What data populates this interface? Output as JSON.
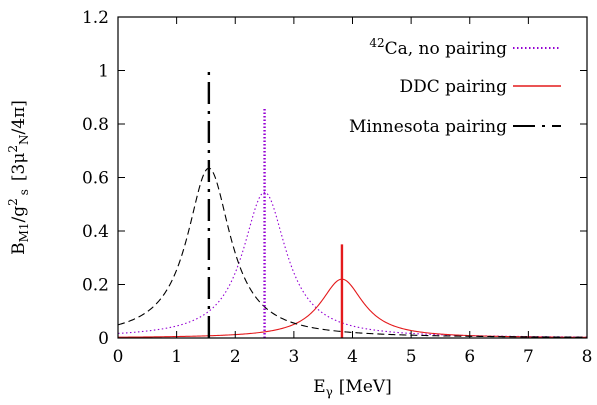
{
  "chart_data": {
    "type": "line",
    "xlabel": {
      "main": "E",
      "sub": "γ",
      "unit": "[MeV]"
    },
    "ylabel": {
      "b": "B",
      "b_sub": "M1",
      "mid": "/g",
      "g_sup": "2",
      "g_sub": "s",
      "unit_open": "[3μ",
      "unit_sup": "2",
      "unit_sub": "N",
      "unit_close": "/4π]"
    },
    "xlim": [
      0,
      8
    ],
    "ylim": [
      0,
      1.2
    ],
    "xticks": [
      0,
      1,
      2,
      3,
      4,
      5,
      6,
      7,
      8
    ],
    "yticks": [
      0,
      0.2,
      0.4,
      0.6,
      0.8,
      1,
      1.2
    ],
    "ytick_labels": [
      "0",
      "0.2",
      "0.4",
      "0.6",
      "0.8",
      "1",
      "1.2"
    ],
    "grid": false,
    "legend_position": "top-right",
    "legend": [
      {
        "sup": "42",
        "label": "Ca, no pairing",
        "color": "#9400d3",
        "style": "dotted"
      },
      {
        "sup": "",
        "label": "DDC pairing",
        "color": "#e41a1c",
        "style": "solid"
      },
      {
        "sup": "",
        "label": "Minnesota pairing",
        "color": "#000000",
        "style": "dashed"
      }
    ],
    "series": [
      {
        "color": "#9400d3",
        "style": "dotted",
        "peak_x": 2.5,
        "peak_y": 0.545,
        "width": 0.45,
        "stick_height": 0.86
      },
      {
        "color": "#e41a1c",
        "style": "solid",
        "peak_x": 3.82,
        "peak_y": 0.22,
        "width": 0.45,
        "stick_height": 0.35
      },
      {
        "color": "#000000",
        "style": "dashed",
        "peak_x": 1.55,
        "peak_y": 0.635,
        "width": 0.45,
        "stick_height": 1.0
      }
    ]
  }
}
